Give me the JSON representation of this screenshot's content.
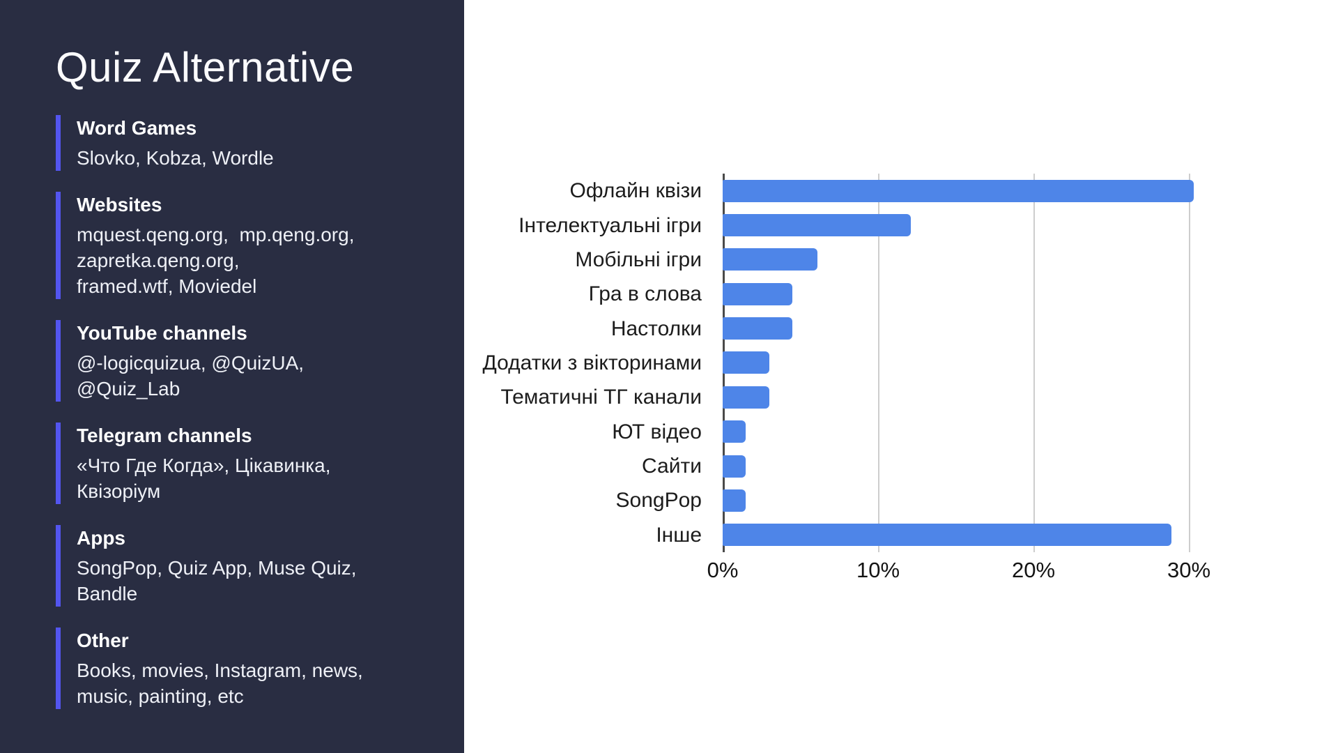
{
  "slide": {
    "title": "Quiz Alternative",
    "sections": [
      {
        "heading": "Word Games",
        "body": "Slovko, Kobza, Wordle"
      },
      {
        "heading": "Websites",
        "body": "mquest.qeng.org,  mp.qeng.org,\nzapretka.qeng.org,\nframed.wtf, Moviedel"
      },
      {
        "heading": "YouTube channels",
        "body": "@-logicquizua, @QuizUA,\n@Quiz_Lab"
      },
      {
        "heading": "Telegram channels",
        "body": "«Что Где Когда», Цікавинка,\nКвізоріум"
      },
      {
        "heading": "Apps",
        "body": "SongPop, Quiz App, Muse Quiz,\nBandle"
      },
      {
        "heading": "Other",
        "body": "Books, movies, Instagram, news,\nmusic, painting, etc"
      }
    ],
    "colors": {
      "sidebar_bg": "#292d42",
      "accent": "#5355ef",
      "bar": "#4e85e8",
      "grid": "#cdcdcd",
      "axis": "#4a4a4a"
    }
  },
  "chart_data": {
    "type": "bar",
    "orientation": "horizontal",
    "title": "",
    "xlabel": "",
    "ylabel": "",
    "categories": [
      "Офлайн квізи",
      "Інтелектуальні ігри",
      "Мобільні ігри",
      "Гра в слова",
      "Настолки",
      "Додатки з вікторинами",
      "Тематичні ТГ канали",
      "ЮТ відео",
      "Сайти",
      "SongPop",
      "Інше"
    ],
    "values": [
      30.3,
      12.1,
      6.1,
      4.5,
      4.5,
      3.0,
      3.0,
      1.5,
      1.5,
      1.5,
      28.9
    ],
    "x_ticks": [
      0,
      10,
      20,
      30
    ],
    "x_tick_labels": [
      "0%",
      "10%",
      "20%",
      "30%"
    ],
    "xlim": [
      0,
      33.5
    ],
    "grid": true,
    "legend": false,
    "bar_color": "#4e85e8"
  }
}
